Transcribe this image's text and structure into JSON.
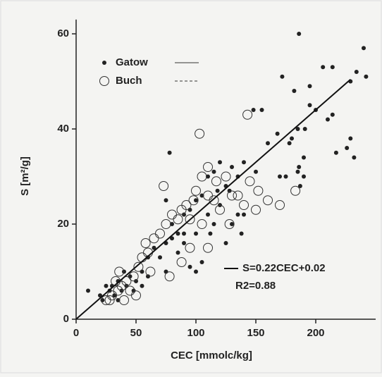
{
  "chart_data": {
    "type": "scatter",
    "x_label": "CEC [mmolc/kg]",
    "y_label": "S [m²/g]",
    "xlim": [
      0,
      250
    ],
    "ylim": [
      0,
      63
    ],
    "xticks": [
      0,
      50,
      100,
      150,
      200
    ],
    "yticks": [
      0,
      20,
      40,
      60
    ],
    "legend": "upper left",
    "series": [
      {
        "name": "Gatow",
        "color": "#222222",
        "marker": "filled",
        "x": [
          186,
          240,
          234,
          242,
          206,
          214,
          229,
          195,
          182,
          172,
          155,
          148,
          195,
          200,
          210,
          214,
          185,
          191,
          178,
          168,
          160,
          180,
          229,
          226,
          217,
          232,
          190,
          186,
          185,
          190,
          187,
          170,
          175,
          150,
          140,
          135,
          130,
          120,
          115,
          110,
          125,
          128,
          118,
          105,
          100,
          95,
          110,
          120,
          135,
          140,
          130,
          115,
          100,
          90,
          85,
          78,
          80,
          75,
          70,
          60,
          65,
          55,
          50,
          45,
          40,
          35,
          30,
          28,
          32,
          38,
          42,
          25,
          20,
          10,
          22,
          35,
          48,
          55,
          60,
          75,
          100,
          105,
          95,
          85,
          90,
          112,
          138,
          125,
          75,
          90,
          80
        ],
        "values": [
          60,
          57,
          52,
          51,
          53,
          53,
          50,
          49,
          48,
          51,
          44,
          44,
          45,
          44,
          42,
          43,
          40,
          40,
          37,
          39,
          37,
          38,
          38,
          36,
          35,
          34,
          34,
          32,
          31,
          30,
          28,
          30,
          30,
          31,
          33,
          30,
          32,
          33,
          31,
          30,
          28,
          27,
          27,
          26,
          25,
          23,
          22,
          24,
          22,
          22,
          20,
          20,
          18,
          18,
          18,
          35,
          17,
          16,
          13,
          13,
          15,
          10,
          8,
          9,
          10,
          8,
          7,
          6,
          5,
          6,
          7,
          7,
          5,
          6,
          4,
          4,
          6,
          7,
          9,
          10,
          10,
          12,
          11,
          14,
          16,
          18,
          18,
          16,
          25,
          22,
          20
        ]
      },
      {
        "name": "Buch",
        "color": "#333333",
        "marker": "open",
        "x": [
          143,
          103,
          110,
          105,
          100,
          98,
          92,
          88,
          95,
          105,
          120,
          130,
          140,
          152,
          160,
          170,
          183,
          145,
          135,
          110,
          115,
          85,
          80,
          75,
          70,
          65,
          73,
          88,
          78,
          60,
          55,
          52,
          48,
          42,
          38,
          35,
          30,
          28,
          25,
          40,
          45,
          50,
          33,
          36,
          62,
          58,
          95,
          110,
          128,
          150,
          125,
          117
        ],
        "values": [
          43,
          39,
          32,
          30,
          27,
          25,
          24,
          23,
          21,
          20,
          23,
          26,
          24,
          27,
          25,
          24,
          27,
          29,
          26,
          26,
          25,
          21,
          22,
          20,
          18,
          17,
          28,
          12,
          9,
          14,
          13,
          11,
          9,
          8,
          7,
          6,
          5,
          4,
          4,
          4,
          6,
          5,
          8,
          10,
          10,
          16,
          15,
          15,
          20,
          23,
          30,
          29
        ]
      }
    ],
    "fit": {
      "x": [
        0,
        229
      ],
      "y": [
        0.02,
        50.4
      ]
    },
    "annotations": [
      "S=0.22CEC+0.02",
      "R2=0.88"
    ]
  }
}
